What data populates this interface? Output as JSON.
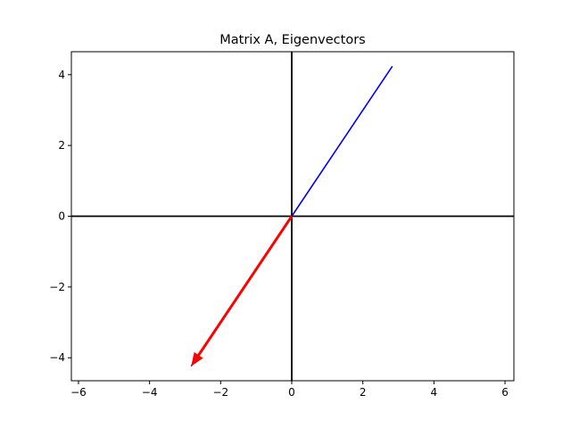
{
  "chart_data": {
    "type": "vector",
    "title": "Matrix A, Eigenvectors",
    "xlabel": "",
    "ylabel": "",
    "xlim": [
      -6.2,
      6.25
    ],
    "ylim": [
      -4.65,
      4.65
    ],
    "xticks": [
      -6,
      -4,
      -2,
      0,
      2,
      4,
      6
    ],
    "yticks": [
      -4,
      -2,
      0,
      2,
      4
    ],
    "xtick_labels": [
      "−6",
      "−4",
      "−2",
      "0",
      "2",
      "4",
      "6"
    ],
    "ytick_labels": [
      "−4",
      "−2",
      "0",
      "2",
      "4"
    ],
    "grid": false,
    "axis_lines_color": "#000000",
    "series": [
      {
        "x0": 0,
        "y0": 0,
        "x1": 2.83,
        "y1": 4.24,
        "color": "#0000ff",
        "style": "line"
      },
      {
        "x0": 0,
        "y0": 0,
        "x1": -2.83,
        "y1": -4.24,
        "color": "#0000ff",
        "style": "line"
      },
      {
        "x0": 0,
        "y0": 0,
        "x1": -2.83,
        "y1": -4.24,
        "color": "#ff0000",
        "style": "arrow"
      }
    ]
  }
}
